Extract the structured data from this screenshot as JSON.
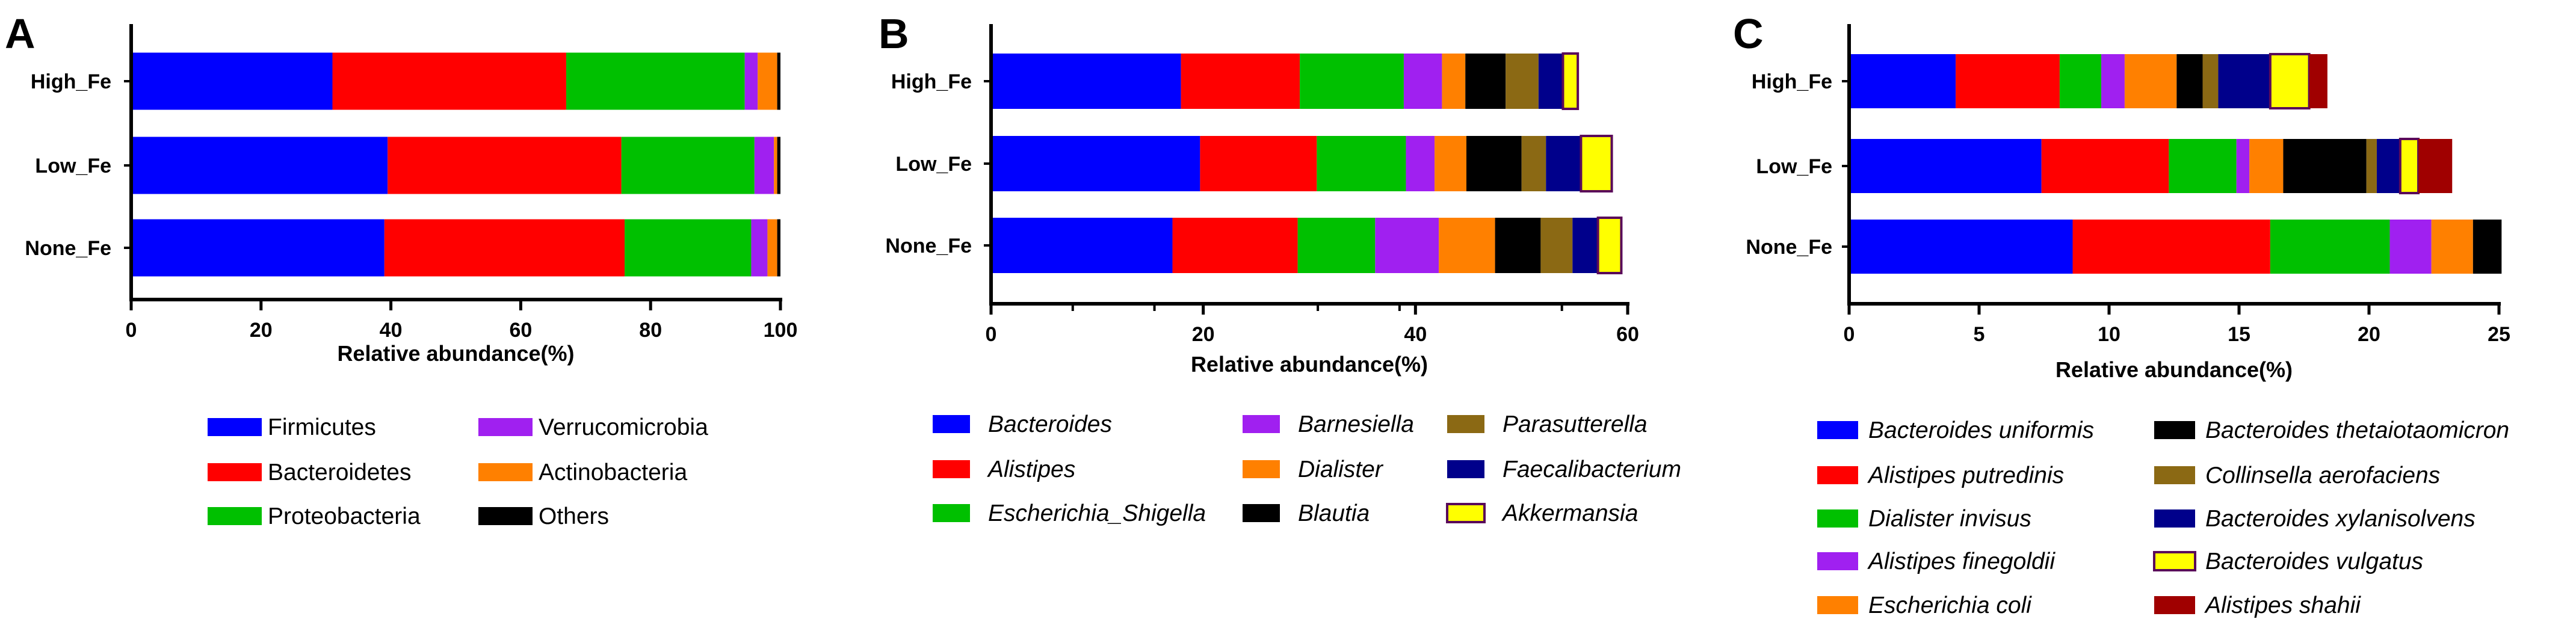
{
  "chart_data": [
    {
      "type": "bar",
      "orientation": "horizontal",
      "stacked": true,
      "panel": "A",
      "xlabel": "Relative abundance(%)",
      "xlim": [
        0,
        100
      ],
      "xticks": [
        0,
        20,
        40,
        60,
        80,
        100
      ],
      "categories": [
        "High_Fe",
        "Low_Fe",
        "None_Fe"
      ],
      "legend_italic": false,
      "series": [
        {
          "name": "Firmicutes",
          "color": "#0000FF",
          "values": [
            31.0,
            39.5,
            39.0
          ]
        },
        {
          "name": "Bacteroidetes",
          "color": "#FF0000",
          "values": [
            36.0,
            36.0,
            37.0
          ]
        },
        {
          "name": "Proteobacteria",
          "color": "#00C000",
          "values": [
            27.5,
            20.5,
            19.5
          ]
        },
        {
          "name": "Verrucomicrobia",
          "color": "#A020F0",
          "values": [
            2.0,
            3.0,
            2.5
          ]
        },
        {
          "name": "Actinobacteria",
          "color": "#FF8000",
          "values": [
            3.0,
            0.5,
            1.5
          ]
        },
        {
          "name": "Others",
          "color": "#000000",
          "values": [
            0.5,
            0.5,
            0.5
          ]
        }
      ]
    },
    {
      "type": "bar",
      "orientation": "horizontal",
      "stacked": true,
      "panel": "B",
      "xlabel": "Relative abundance(%)",
      "xlim": [
        0,
        60
      ],
      "xticks": [
        0,
        20,
        40,
        60
      ],
      "categories": [
        "High_Fe",
        "Low_Fe",
        "None_Fe"
      ],
      "legend_italic": true,
      "series": [
        {
          "name": "Bacteroides",
          "color": "#0000FF",
          "values": [
            17.9,
            19.7,
            17.1
          ]
        },
        {
          "name": "Alistipes",
          "color": "#FF0000",
          "values": [
            11.2,
            11.0,
            11.8
          ]
        },
        {
          "name": "Escherichia_Shigella",
          "color": "#00C000",
          "values": [
            9.8,
            8.4,
            7.3
          ]
        },
        {
          "name": "Barnesiella",
          "color": "#A020F0",
          "values": [
            3.6,
            2.7,
            6.0
          ]
        },
        {
          "name": "Dialister",
          "color": "#FF8000",
          "values": [
            2.2,
            3.0,
            5.3
          ]
        },
        {
          "name": "Blautia",
          "color": "#000000",
          "values": [
            3.8,
            5.2,
            4.3
          ]
        },
        {
          "name": "Parasutterella",
          "color": "#8B6914",
          "values": [
            3.1,
            2.3,
            3.0
          ]
        },
        {
          "name": "Faecalibacterium",
          "color": "#00008B",
          "values": [
            2.3,
            3.3,
            2.4
          ]
        },
        {
          "name": "Akkermansia",
          "color": "#FFFF00",
          "values": [
            1.4,
            2.9,
            2.2
          ]
        }
      ]
    },
    {
      "type": "bar",
      "orientation": "horizontal",
      "stacked": true,
      "panel": "C",
      "xlabel": "Relative abundance(%)",
      "xlim": [
        0,
        25
      ],
      "xticks": [
        0,
        5,
        10,
        15,
        20,
        25
      ],
      "categories": [
        "High_Fe",
        "Low_Fe",
        "None_Fe"
      ],
      "legend_italic": true,
      "series": [
        {
          "name": "Bacteroides uniformis",
          "color": "#0000FF",
          "values": [
            4.1,
            7.4,
            8.6
          ]
        },
        {
          "name": "Alistipes putredinis",
          "color": "#FF0000",
          "values": [
            4.0,
            4.9,
            7.6
          ]
        },
        {
          "name": "Dialister invisus",
          "color": "#00C000",
          "values": [
            1.6,
            2.6,
            4.6
          ]
        },
        {
          "name": "Alistipes finegoldii",
          "color": "#A020F0",
          "values": [
            0.9,
            0.5,
            1.6
          ]
        },
        {
          "name": "Escherichia coli",
          "color": "#FF8000",
          "values": [
            2.0,
            1.3,
            1.6
          ]
        },
        {
          "name": "Bacteroides thetaiotaomicron",
          "color": "#000000",
          "values": [
            1.0,
            3.2,
            1.1
          ]
        },
        {
          "name": "Collinsella aerofaciens",
          "color": "#8B6914",
          "values": [
            0.6,
            0.4,
            0.0
          ]
        },
        {
          "name": "Bacteroides xylanisolvens",
          "color": "#00008B",
          "values": [
            2.0,
            0.9,
            0.0
          ]
        },
        {
          "name": "Bacteroides vulgatus",
          "color": "#FFFF00",
          "values": [
            1.5,
            0.7,
            0.0
          ]
        },
        {
          "name": "Alistipes shahii",
          "color": "#A00000",
          "values": [
            0.7,
            1.3,
            0.0
          ]
        }
      ]
    }
  ]
}
